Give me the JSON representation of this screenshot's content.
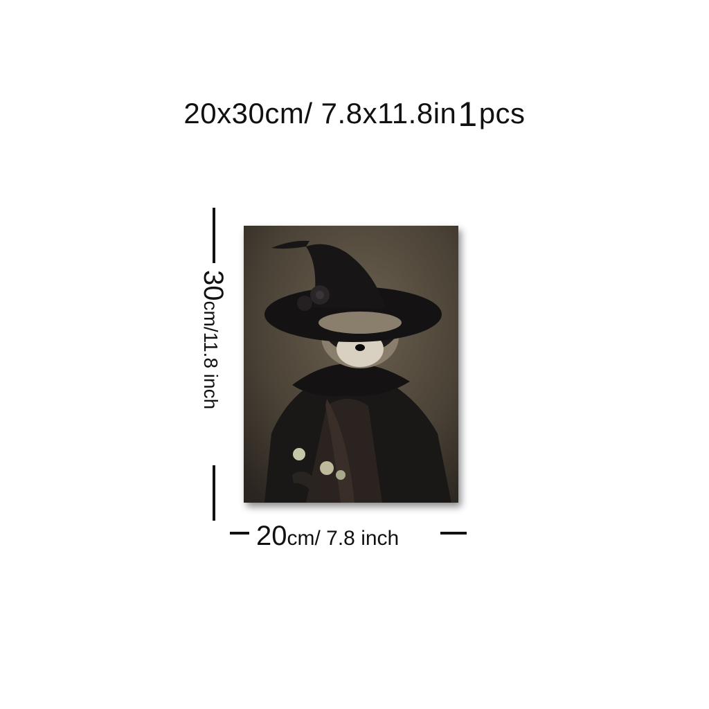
{
  "title": {
    "size_text": "20x30cm/ 7.8x11.8in",
    "quantity": "1",
    "unit": "pcs"
  },
  "height_label": {
    "value": "30",
    "rest": "cm/11.8 inch"
  },
  "width_label": {
    "value": "20",
    "rest": "cm/ 7.8 inch"
  },
  "artwork": {
    "subject": "raccoon-in-witch-hat-painting",
    "colors": {
      "background": "#4a4236",
      "cloak": "#1a1717",
      "hat": "#141213",
      "fur": "#d8d0c0"
    }
  }
}
